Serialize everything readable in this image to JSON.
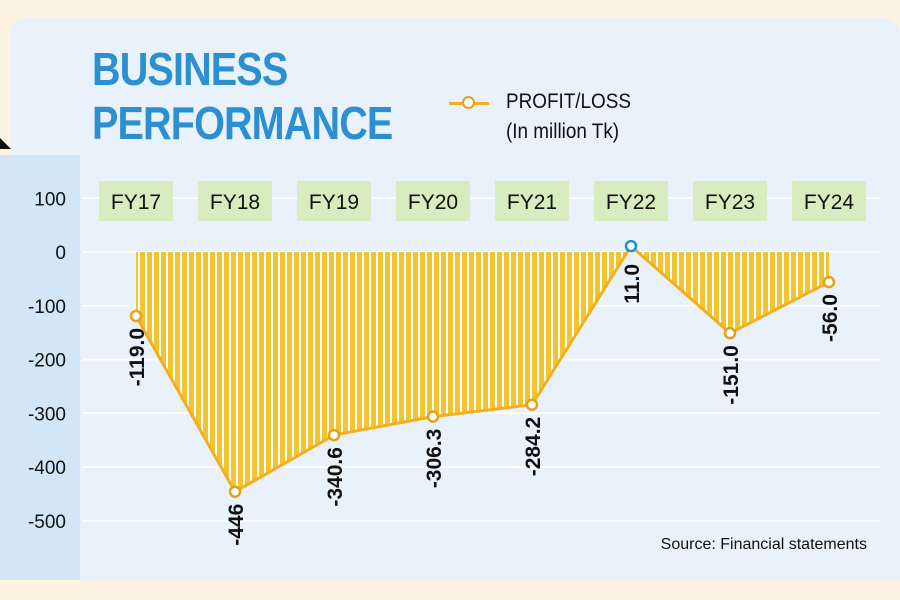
{
  "colors": {
    "title": "#2b8fd0",
    "area": "#f2c530",
    "stripe": "#ffffff",
    "line": "#f2b01e",
    "marker_negative": "#e2a21a",
    "marker_positive": "#1b8fd2",
    "category_box": "#d7ecbf",
    "gridline": "#ffffff"
  },
  "chart_data": {
    "type": "area",
    "title_line1": "BUSINESS",
    "title_line2": "PERFORMANCE",
    "legend": {
      "label": "PROFIT/LOSS",
      "unit": "(In million Tk)"
    },
    "categories": [
      "FY17",
      "FY18",
      "FY19",
      "FY20",
      "FY21",
      "FY22",
      "FY23",
      "FY24"
    ],
    "series": [
      {
        "name": "PROFIT/LOSS",
        "values": [
          -119.0,
          -446,
          -340.6,
          -306.3,
          -284.2,
          11.0,
          -151.0,
          -56.0
        ],
        "labels": [
          "-119.0",
          "-446",
          "-340.6",
          "-306.3",
          "-284.2",
          "11.0",
          "-151.0",
          "-56.0"
        ]
      }
    ],
    "yticks": [
      100,
      0,
      -100,
      -200,
      -300,
      -400,
      -500
    ],
    "ylim": [
      -560,
      130
    ],
    "grid": true,
    "legend_position": "top-right",
    "source": "Source: Financial statements"
  }
}
